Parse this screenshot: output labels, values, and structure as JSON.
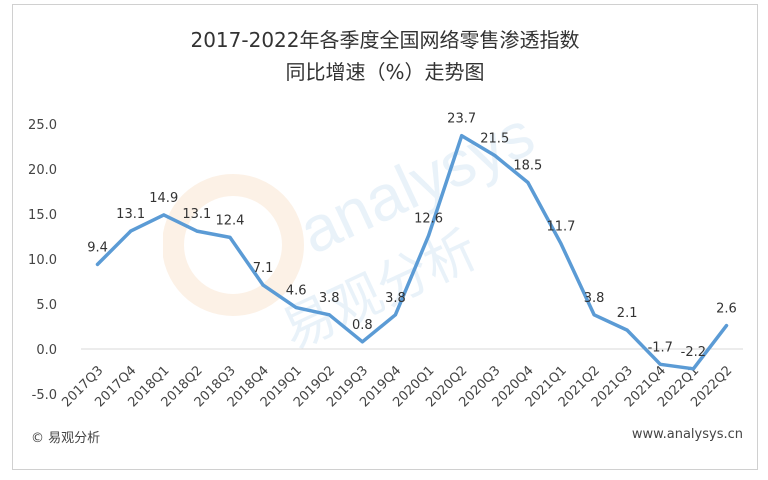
{
  "chart_data": {
    "type": "line",
    "title_line1": "2017-2022年各季度全国网络零售渗透指数",
    "title_line2": "同比增速（%）走势图",
    "categories": [
      "2017Q3",
      "2017Q4",
      "2018Q1",
      "2018Q2",
      "2018Q3",
      "2018Q4",
      "2019Q1",
      "2019Q2",
      "2019Q3",
      "2019Q4",
      "2020Q1",
      "2020Q2",
      "2020Q3",
      "2020Q4",
      "2021Q1",
      "2021Q2",
      "2021Q3",
      "2021Q4",
      "2022Q1",
      "2022Q2"
    ],
    "values": [
      9.4,
      13.1,
      14.9,
      13.1,
      12.4,
      7.1,
      4.6,
      3.8,
      0.8,
      3.8,
      12.6,
      23.7,
      21.5,
      18.5,
      11.7,
      3.8,
      2.1,
      -1.7,
      -2.2,
      2.6
    ],
    "value_labels": [
      "9.4",
      "13.1",
      "14.9",
      "13.1",
      "12.4",
      "7.1",
      "4.6",
      "3.8",
      "0.8",
      "3.8",
      "12.6",
      "23.7",
      "21.5",
      "18.5",
      "11.7",
      "3.8",
      "2.1",
      "-1.7",
      "-2.2",
      "2.6"
    ],
    "y_ticks": [
      "25.0",
      "20.0",
      "15.0",
      "10.0",
      "5.0",
      "0.0",
      "-5.0"
    ],
    "ylim": [
      -5,
      25
    ],
    "line_color": "#5b9bd5",
    "grid": false
  },
  "footer": {
    "copyright": "© 易观分析",
    "website": "www.analysys.cn"
  },
  "watermark": {
    "text_en": "analysys",
    "text_cn": "易观分析"
  }
}
